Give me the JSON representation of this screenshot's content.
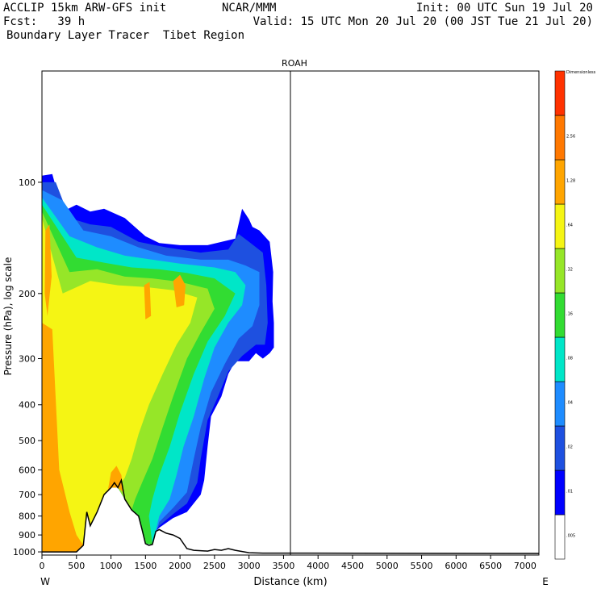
{
  "header": {
    "line1_left": "ACCLIP 15km ARW-GFS init",
    "line1_mid": "NCAR/MMM",
    "line1_right": "Init: 00 UTC Sun 19 Jul 20",
    "line2_left": "Fcst:   39 h",
    "line2_right": "Valid: 15 UTC Mon 20 Jul 20 (00 JST Tue 21 Jul 20)",
    "line3_left": "Boundary Layer Tracer  Tibet Region"
  },
  "chart_data": {
    "type": "heatmap",
    "title": "ROAH",
    "xlabel": "Distance (km)",
    "ylabel": "Pressure (hPa), log scale",
    "x_ticks": [
      0,
      500,
      1000,
      1500,
      2000,
      2500,
      3000,
      3500,
      4000,
      4500,
      5000,
      5500,
      6000,
      6500,
      7000
    ],
    "x_tick_labels": [
      "0",
      "500",
      "1000",
      "1500",
      "2000",
      "2500",
      "3000",
      "3500",
      "4000",
      "4500",
      "5000",
      "5500",
      "6000",
      "6500",
      "7000"
    ],
    "xlim": [
      0,
      7200
    ],
    "y_ticks": [
      100,
      200,
      300,
      400,
      500,
      600,
      700,
      800,
      900,
      1000
    ],
    "y_tick_labels": [
      "100",
      "200",
      "300",
      "400",
      "500",
      "600",
      "700",
      "800",
      "900",
      "1000"
    ],
    "ylim": [
      1020,
      50
    ],
    "y_scale": "log",
    "left_end_label": "W",
    "right_end_label": "E",
    "marker_line_x": 3600,
    "colorbar": {
      "levels": [
        ".005",
        ".01",
        ".02",
        ".04",
        ".08",
        ".16",
        ".32",
        ".64",
        "1.28",
        "2.56",
        "Dimensionless"
      ],
      "colors": [
        "#ffffff",
        "#0000ff",
        "#1e50e0",
        "#1e8cff",
        "#00e6c8",
        "#32dc32",
        "#96e628",
        "#f5f514",
        "#ffa500",
        "#ff7800",
        "#ff3200"
      ]
    },
    "terrain_profile": [
      [
        0,
        1000
      ],
      [
        500,
        1000
      ],
      [
        600,
        960
      ],
      [
        650,
        780
      ],
      [
        700,
        850
      ],
      [
        800,
        780
      ],
      [
        900,
        700
      ],
      [
        1000,
        670
      ],
      [
        1050,
        650
      ],
      [
        1100,
        670
      ],
      [
        1150,
        640
      ],
      [
        1200,
        720
      ],
      [
        1300,
        770
      ],
      [
        1400,
        800
      ],
      [
        1450,
        870
      ],
      [
        1500,
        950
      ],
      [
        1550,
        960
      ],
      [
        1600,
        955
      ],
      [
        1650,
        880
      ],
      [
        1700,
        870
      ],
      [
        1800,
        890
      ],
      [
        1900,
        900
      ],
      [
        2000,
        920
      ],
      [
        2100,
        980
      ],
      [
        2200,
        990
      ],
      [
        2400,
        995
      ],
      [
        2500,
        985
      ],
      [
        2600,
        990
      ],
      [
        2700,
        980
      ],
      [
        2800,
        990
      ],
      [
        3000,
        1005
      ],
      [
        3200,
        1008
      ],
      [
        7200,
        1010
      ]
    ]
  }
}
